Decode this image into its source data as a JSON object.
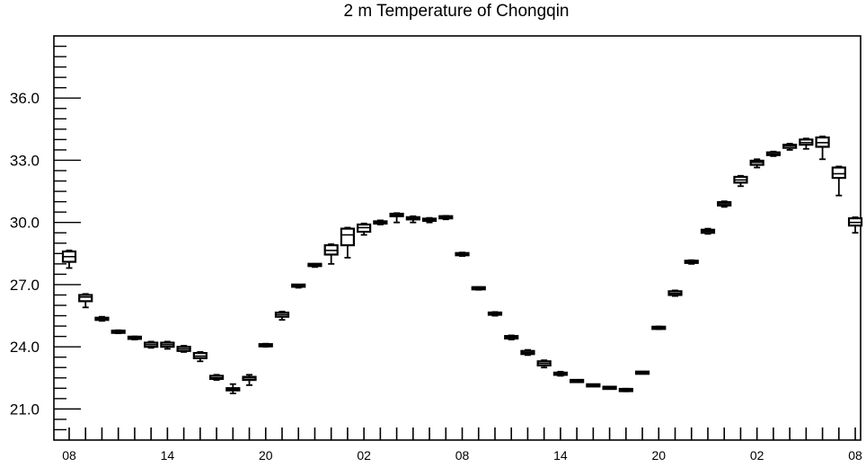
{
  "chart_data": {
    "type": "boxplot",
    "title": "2 m Temperature of Chongqin",
    "xlabel": "",
    "ylabel": "",
    "ylim": [
      19.5,
      39.0
    ],
    "y_ticks": [
      "21.0",
      "24.0",
      "27.0",
      "30.0",
      "33.0",
      "36.0"
    ],
    "x_tick_labels": [
      "08",
      "14",
      "20",
      "02",
      "08",
      "14",
      "20",
      "02",
      "08"
    ],
    "x_tick_steps": [
      0,
      6,
      12,
      18,
      24,
      30,
      36,
      42,
      48
    ],
    "grid": false,
    "series": [
      {
        "step": 0,
        "min": 27.8,
        "q1": 28.1,
        "median": 28.35,
        "q3": 28.6,
        "max": 28.65
      },
      {
        "step": 1,
        "min": 25.9,
        "q1": 26.2,
        "median": 26.4,
        "q3": 26.5,
        "max": 26.55
      },
      {
        "step": 2,
        "min": 25.25,
        "q1": 25.3,
        "median": 25.35,
        "q3": 25.4,
        "max": 25.45
      },
      {
        "step": 3,
        "min": 24.65,
        "q1": 24.7,
        "median": 24.72,
        "q3": 24.75,
        "max": 24.8
      },
      {
        "step": 4,
        "min": 24.35,
        "q1": 24.4,
        "median": 24.43,
        "q3": 24.47,
        "max": 24.5
      },
      {
        "step": 5,
        "min": 23.95,
        "q1": 24.0,
        "median": 24.1,
        "q3": 24.2,
        "max": 24.25
      },
      {
        "step": 6,
        "min": 23.9,
        "q1": 24.0,
        "median": 24.1,
        "q3": 24.2,
        "max": 24.25
      },
      {
        "step": 7,
        "min": 23.75,
        "q1": 23.8,
        "median": 23.9,
        "q3": 24.0,
        "max": 24.05
      },
      {
        "step": 8,
        "min": 23.3,
        "q1": 23.45,
        "median": 23.55,
        "q3": 23.7,
        "max": 23.75
      },
      {
        "step": 9,
        "min": 22.4,
        "q1": 22.45,
        "median": 22.5,
        "q3": 22.6,
        "max": 22.65
      },
      {
        "step": 10,
        "min": 21.75,
        "q1": 21.9,
        "median": 21.95,
        "q3": 22.0,
        "max": 22.2
      },
      {
        "step": 11,
        "min": 22.15,
        "q1": 22.4,
        "median": 22.5,
        "q3": 22.55,
        "max": 22.65
      },
      {
        "step": 12,
        "min": 24.0,
        "q1": 24.05,
        "median": 24.08,
        "q3": 24.1,
        "max": 24.15
      },
      {
        "step": 13,
        "min": 25.3,
        "q1": 25.45,
        "median": 25.55,
        "q3": 25.65,
        "max": 25.7
      },
      {
        "step": 14,
        "min": 26.85,
        "q1": 26.92,
        "median": 26.95,
        "q3": 26.98,
        "max": 27.0
      },
      {
        "step": 15,
        "min": 27.85,
        "q1": 27.92,
        "median": 27.95,
        "q3": 27.98,
        "max": 28.0
      },
      {
        "step": 16,
        "min": 28.0,
        "q1": 28.45,
        "median": 28.65,
        "q3": 28.9,
        "max": 28.95
      },
      {
        "step": 17,
        "min": 28.3,
        "q1": 28.9,
        "median": 29.4,
        "q3": 29.7,
        "max": 29.75
      },
      {
        "step": 18,
        "min": 29.4,
        "q1": 29.55,
        "median": 29.75,
        "q3": 29.9,
        "max": 29.95
      },
      {
        "step": 19,
        "min": 29.9,
        "q1": 29.95,
        "median": 30.0,
        "q3": 30.05,
        "max": 30.1
      },
      {
        "step": 20,
        "min": 30.0,
        "q1": 30.3,
        "median": 30.35,
        "q3": 30.42,
        "max": 30.45
      },
      {
        "step": 21,
        "min": 30.0,
        "q1": 30.15,
        "median": 30.2,
        "q3": 30.25,
        "max": 30.3
      },
      {
        "step": 22,
        "min": 30.0,
        "q1": 30.08,
        "median": 30.12,
        "q3": 30.18,
        "max": 30.22
      },
      {
        "step": 23,
        "min": 30.15,
        "q1": 30.2,
        "median": 30.25,
        "q3": 30.3,
        "max": 30.32
      },
      {
        "step": 24,
        "min": 28.38,
        "q1": 28.42,
        "median": 28.48,
        "q3": 28.52,
        "max": 28.55
      },
      {
        "step": 25,
        "min": 26.75,
        "q1": 26.8,
        "median": 26.82,
        "q3": 26.85,
        "max": 26.88
      },
      {
        "step": 26,
        "min": 25.5,
        "q1": 25.55,
        "median": 25.6,
        "q3": 25.65,
        "max": 25.68
      },
      {
        "step": 27,
        "min": 24.35,
        "q1": 24.4,
        "median": 24.45,
        "q3": 24.52,
        "max": 24.55
      },
      {
        "step": 28,
        "min": 23.6,
        "q1": 23.65,
        "median": 23.72,
        "q3": 23.8,
        "max": 23.85
      },
      {
        "step": 29,
        "min": 23.0,
        "q1": 23.1,
        "median": 23.2,
        "q3": 23.3,
        "max": 23.35
      },
      {
        "step": 30,
        "min": 22.6,
        "q1": 22.65,
        "median": 22.7,
        "q3": 22.75,
        "max": 22.8
      },
      {
        "step": 31,
        "min": 22.3,
        "q1": 22.32,
        "median": 22.35,
        "q3": 22.38,
        "max": 22.4
      },
      {
        "step": 32,
        "min": 22.1,
        "q1": 22.12,
        "median": 22.14,
        "q3": 22.16,
        "max": 22.18
      },
      {
        "step": 33,
        "min": 21.98,
        "q1": 22.0,
        "median": 22.02,
        "q3": 22.04,
        "max": 22.06
      },
      {
        "step": 34,
        "min": 21.85,
        "q1": 21.88,
        "median": 21.92,
        "q3": 21.95,
        "max": 21.98
      },
      {
        "step": 35,
        "min": 22.7,
        "q1": 22.72,
        "median": 22.75,
        "q3": 22.78,
        "max": 22.8
      },
      {
        "step": 36,
        "min": 24.85,
        "q1": 24.88,
        "median": 24.92,
        "q3": 24.95,
        "max": 24.98
      },
      {
        "step": 37,
        "min": 26.45,
        "q1": 26.5,
        "median": 26.58,
        "q3": 26.68,
        "max": 26.72
      },
      {
        "step": 38,
        "min": 28.0,
        "q1": 28.05,
        "median": 28.1,
        "q3": 28.15,
        "max": 28.18
      },
      {
        "step": 39,
        "min": 29.45,
        "q1": 29.5,
        "median": 29.58,
        "q3": 29.65,
        "max": 29.7
      },
      {
        "step": 40,
        "min": 30.75,
        "q1": 30.82,
        "median": 30.9,
        "q3": 30.98,
        "max": 31.02
      },
      {
        "step": 41,
        "min": 31.75,
        "q1": 31.92,
        "median": 32.05,
        "q3": 32.2,
        "max": 32.25
      },
      {
        "step": 42,
        "min": 32.65,
        "q1": 32.78,
        "median": 32.9,
        "q3": 32.98,
        "max": 33.05
      },
      {
        "step": 43,
        "min": 33.2,
        "q1": 33.25,
        "median": 33.3,
        "q3": 33.38,
        "max": 33.42
      },
      {
        "step": 44,
        "min": 33.5,
        "q1": 33.6,
        "median": 33.7,
        "q3": 33.75,
        "max": 33.8
      },
      {
        "step": 45,
        "min": 33.55,
        "q1": 33.75,
        "median": 33.85,
        "q3": 34.0,
        "max": 34.05
      },
      {
        "step": 46,
        "min": 33.05,
        "q1": 33.65,
        "median": 33.85,
        "q3": 34.1,
        "max": 34.15
      },
      {
        "step": 47,
        "min": 31.3,
        "q1": 32.15,
        "median": 32.35,
        "q3": 32.65,
        "max": 32.7
      },
      {
        "step": 48,
        "min": 29.5,
        "q1": 29.85,
        "median": 30.0,
        "q3": 30.2,
        "max": 30.25
      }
    ]
  }
}
